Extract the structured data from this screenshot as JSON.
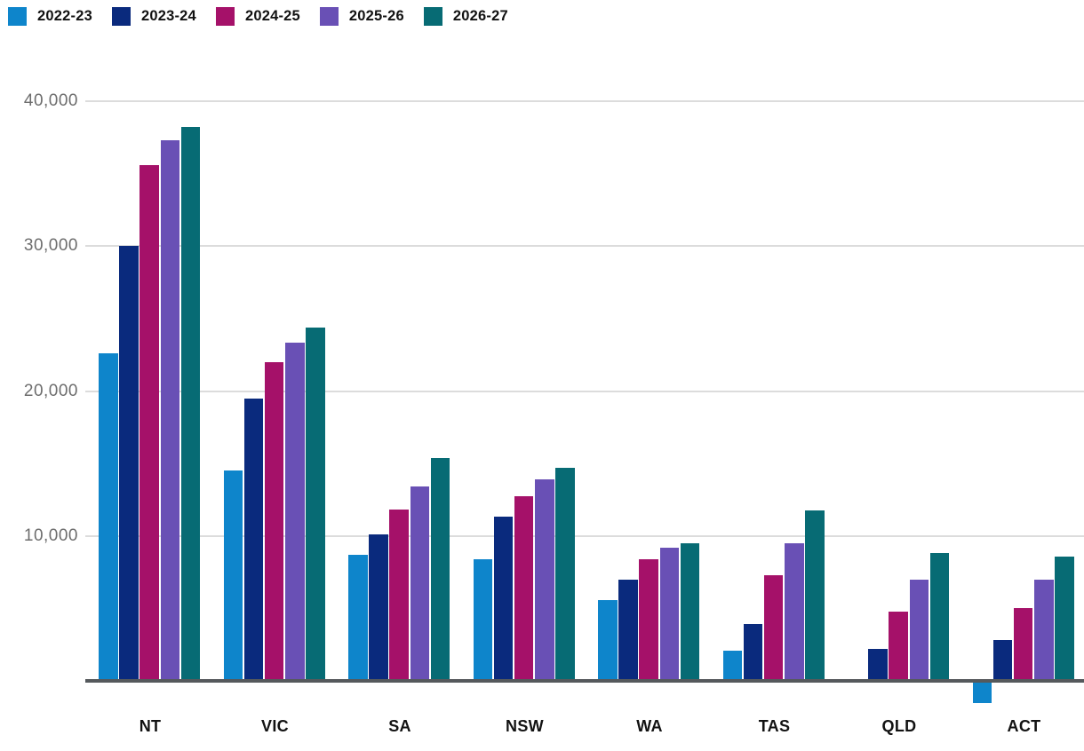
{
  "chart_data": {
    "type": "bar",
    "title": "",
    "xlabel": "",
    "ylabel": "",
    "categories": [
      "NT",
      "VIC",
      "SA",
      "NSW",
      "WA",
      "TAS",
      "QLD",
      "ACT"
    ],
    "series": [
      {
        "name": "2022-23",
        "color": "#0e85cb",
        "values": [
          22600,
          14500,
          8700,
          8400,
          5600,
          2100,
          150,
          -1550
        ]
      },
      {
        "name": "2023-24",
        "color": "#0a2a7d",
        "values": [
          30000,
          19450,
          10100,
          11350,
          7000,
          3900,
          2200,
          2800
        ]
      },
      {
        "name": "2024-25",
        "color": "#a51169",
        "values": [
          35600,
          22000,
          11850,
          12750,
          8400,
          7300,
          4750,
          5000
        ]
      },
      {
        "name": "2025-26",
        "color": "#6950b5",
        "values": [
          37300,
          23350,
          13400,
          13900,
          9200,
          9500,
          7000,
          7000
        ]
      },
      {
        "name": "2026-27",
        "color": "#076b74",
        "values": [
          38200,
          24400,
          15350,
          14700,
          9500,
          11750,
          8850,
          8550
        ]
      }
    ],
    "ylim": [
      -2000,
      40000
    ],
    "yticks": [
      10000,
      20000,
      30000,
      40000
    ],
    "ytick_labels": [
      "10,000",
      "20,000",
      "30,000",
      "40,000"
    ],
    "grid": "horizontal",
    "legend_position": "top-left"
  },
  "colors": {
    "background": "#ffffff",
    "gridline": "#dcdcdc",
    "baseline": "#55595c",
    "ytick_text": "#6d6d6d",
    "xtick_text": "#121212",
    "legend_text": "#121212"
  }
}
